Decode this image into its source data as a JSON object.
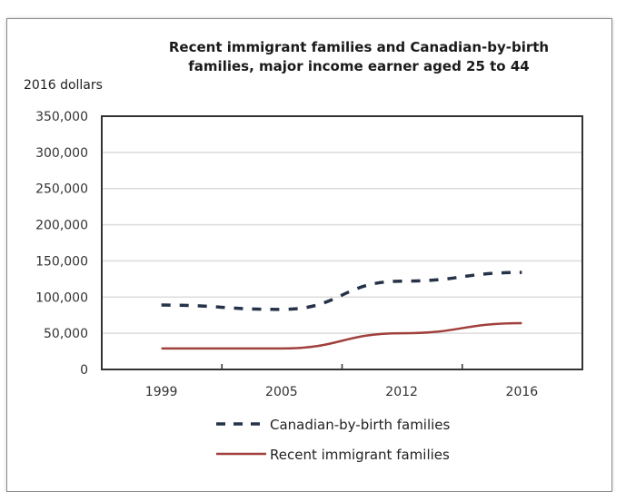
{
  "chart_data": {
    "type": "line",
    "title": "Recent immigrant families and Canadian-by-birth families, major income earner aged 25 to 44",
    "title_lines": [
      "Recent immigrant families and Canadian-by-birth",
      "families, major income earner aged 25 to 44"
    ],
    "xlabel": "",
    "ylabel": "2016 dollars",
    "categories": [
      "1999",
      "2005",
      "2012",
      "2016"
    ],
    "ylim": [
      0,
      350000
    ],
    "yticks": [
      0,
      50000,
      100000,
      150000,
      200000,
      250000,
      300000,
      350000
    ],
    "ytick_labels": [
      "0",
      "50,000",
      "100,000",
      "150,000",
      "200,000",
      "250,000",
      "300,000",
      "350,000"
    ],
    "grid": true,
    "legend_position": "bottom",
    "series": [
      {
        "name": "Canadian-by-birth families",
        "values": [
          89000,
          83000,
          122000,
          134000
        ],
        "color": "#253248",
        "style": "dashed"
      },
      {
        "name": "Recent immigrant families",
        "values": [
          29000,
          29000,
          50000,
          64000
        ],
        "color": "#a0403c",
        "style": "solid"
      }
    ]
  }
}
